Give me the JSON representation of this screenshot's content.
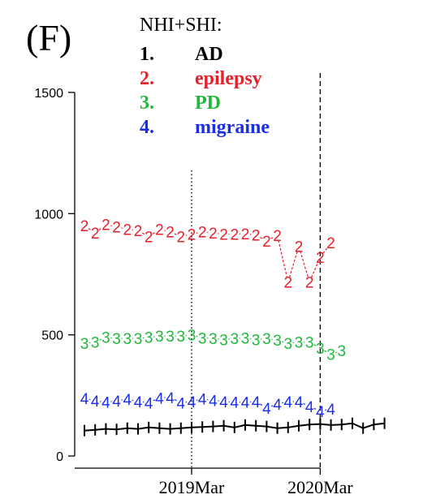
{
  "chart_data": {
    "type": "line",
    "panel_label": "(F)",
    "legend_title": "NHI+SHI:",
    "legend": [
      {
        "num": "1.",
        "label": "AD",
        "color": "#000000"
      },
      {
        "num": "2.",
        "label": "epilepsy",
        "color": "#e8202a"
      },
      {
        "num": "3.",
        "label": "PD",
        "color": "#1fb83a"
      },
      {
        "num": "4.",
        "label": "migraine",
        "color": "#1a2ee8"
      }
    ],
    "legend_placement": "top",
    "ylim": [
      -50,
      1580
    ],
    "yticks": [
      0,
      500,
      1000,
      1500
    ],
    "xticks": [
      {
        "label": "2019Mar",
        "index": 10
      },
      {
        "label": "2020Mar",
        "index": 22
      }
    ],
    "vlines": [
      {
        "index": 10,
        "style": "dotted"
      },
      {
        "index": 22,
        "style": "dashed"
      }
    ],
    "grid": false,
    "series": [
      {
        "marker": "1",
        "color": "#000000",
        "values": [
          105,
          108,
          112,
          110,
          115,
          112,
          118,
          115,
          112,
          115,
          118,
          120,
          122,
          125,
          118,
          128,
          125,
          122,
          115,
          118,
          125,
          130,
          132,
          128,
          130,
          135,
          115,
          130,
          135
        ]
      },
      {
        "marker": "2",
        "color": "#e8202a",
        "values": [
          950,
          920,
          955,
          945,
          935,
          930,
          905,
          935,
          925,
          905,
          915,
          925,
          920,
          915,
          915,
          918,
          912,
          888,
          910,
          718,
          865,
          718,
          820,
          880
        ]
      },
      {
        "marker": "3",
        "color": "#1fb83a",
        "values": [
          465,
          470,
          490,
          485,
          485,
          485,
          490,
          495,
          495,
          495,
          500,
          488,
          485,
          480,
          485,
          488,
          480,
          485,
          478,
          465,
          470,
          470,
          445,
          420,
          435
        ]
      },
      {
        "marker": "4",
        "color": "#1a2ee8",
        "values": [
          238,
          228,
          222,
          228,
          235,
          225,
          220,
          240,
          242,
          220,
          225,
          236,
          230,
          225,
          222,
          222,
          225,
          198,
          215,
          225,
          225,
          205,
          185,
          195
        ]
      }
    ]
  }
}
